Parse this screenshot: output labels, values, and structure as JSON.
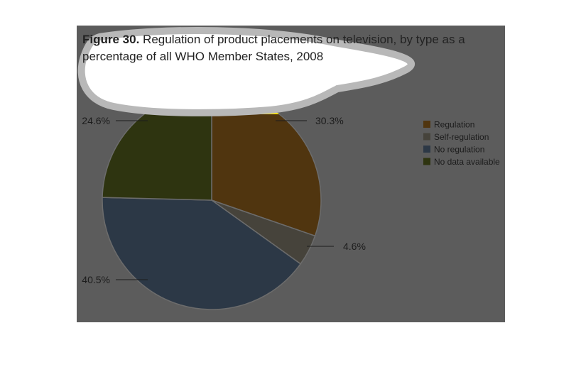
{
  "figure": {
    "label": "Figure 30.",
    "title": "Regulation of product placements on television, by type as a percentage of all WHO Member States, 2008"
  },
  "chart_data": {
    "type": "pie",
    "categories": [
      "Regulation",
      "Self-regulation",
      "No regulation",
      "No data available"
    ],
    "values": [
      30.3,
      4.6,
      40.5,
      24.6
    ],
    "labels": [
      "30.3%",
      "4.6%",
      "40.5%",
      "24.6%"
    ],
    "colors": [
      "#50350f",
      "#46433b",
      "#2c3846",
      "#2e3410"
    ],
    "legend_position": "right",
    "start_angle_deg": 0,
    "direction": "clockwise"
  }
}
